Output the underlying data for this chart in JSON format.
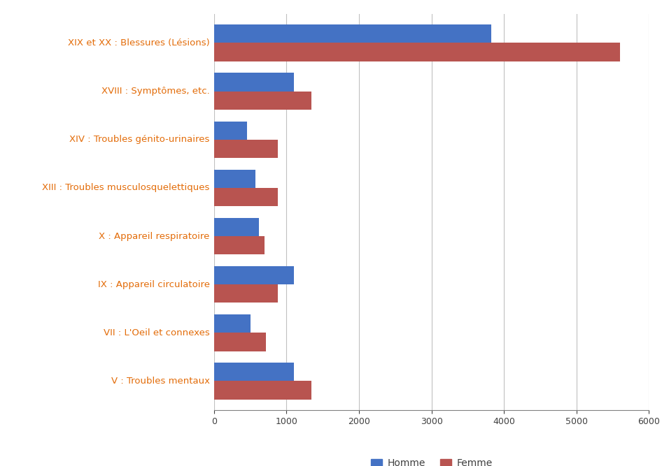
{
  "categories": [
    "V : Troubles mentaux",
    "VII : L'Oeil et connexes",
    "IX : Appareil circulatoire",
    "X : Appareil respiratoire",
    "XIII : Troubles musculosquelettiques",
    "XIV : Troubles génito-urinaires",
    "XVIII : Symptômes, etc.",
    "XIX et XX : Blessures (Lésions)"
  ],
  "homme": [
    1100,
    500,
    1100,
    620,
    570,
    450,
    1100,
    3820
  ],
  "femme": [
    1340,
    720,
    880,
    700,
    880,
    880,
    1340,
    5600
  ],
  "homme_color": "#4472C4",
  "femme_color": "#B85450",
  "legend_homme": "Homme",
  "legend_femme": "Femme",
  "xlim": [
    0,
    6000
  ],
  "xticks": [
    0,
    1000,
    2000,
    3000,
    4000,
    5000,
    6000
  ],
  "background_color": "#FFFFFF",
  "grid_color": "#C0C0C0",
  "label_color": "#E36C09",
  "label_fontsize": 9.5,
  "bar_height": 0.38
}
